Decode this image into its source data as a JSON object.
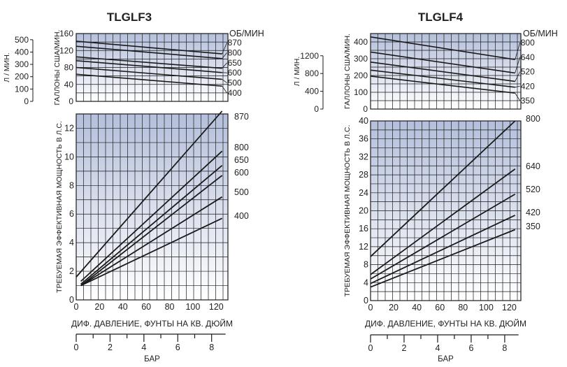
{
  "colors": {
    "title": "#1f5aa8",
    "plot_top": "#b4bfdb",
    "plot_bottom": "#ffffff",
    "grid": "#1a1a1a",
    "line": "#1a1a1a"
  },
  "common": {
    "rpm_label": "ОБ/МИН",
    "flow_left_label": "Л / МИН.",
    "flow_right_label": "ГАЛЛОНЫ США/МИН.",
    "power_label": "ТРЕБУЕМАЯ ЭФФЕКТИВНАЯ МОЩНОСТЬ В Л.С.",
    "psi_label": "ДИФ. ДАВЛЕНИЕ, ФУНТЫ НА КВ. ДЮЙМ",
    "bar_label": "БАР"
  },
  "chart_data": [
    {
      "id": "TLGLF3",
      "title": "TLGLF3",
      "flow_chart": {
        "type": "line",
        "x": [
          0,
          125
        ],
        "ylim": [
          0,
          160
        ],
        "y_ticks": [
          0,
          40,
          80,
          120,
          160
        ],
        "liters_ticks": [
          0,
          100,
          200,
          300,
          400,
          500
        ],
        "series": [
          {
            "name": "870",
            "values": [
              142,
              112
            ]
          },
          {
            "name": "800",
            "values": [
              130,
              101
            ]
          },
          {
            "name": "650",
            "values": [
              105,
              78
            ]
          },
          {
            "name": "600",
            "values": [
              96,
              68
            ]
          },
          {
            "name": "500",
            "values": [
              80,
              52
            ]
          },
          {
            "name": "400",
            "values": [
              64,
              36
            ]
          }
        ]
      },
      "power_chart": {
        "type": "line",
        "xlabel": "ДИФ. ДАВЛЕНИЕ, ФУНТЫ НА КВ. ДЮЙМ",
        "ylabel": "ТРЕБУЕМАЯ ЭФФЕКТИВНАЯ МОЩНОСТЬ В Л.С.",
        "xlim": [
          0,
          130
        ],
        "ylim": [
          0,
          13
        ],
        "x_ticks": [
          0,
          20,
          40,
          60,
          80,
          100,
          120
        ],
        "y_ticks": [
          0,
          2,
          4,
          6,
          8,
          10,
          12
        ],
        "bar_ticks": [
          0,
          2,
          4,
          6,
          8
        ],
        "series": [
          {
            "name": "870",
            "x": [
              0,
              125
            ],
            "values": [
              1.6,
              13.2
            ]
          },
          {
            "name": "800",
            "x": [
              4,
              125
            ],
            "values": [
              1.3,
              10.4
            ]
          },
          {
            "name": "650",
            "x": [
              4,
              125
            ],
            "values": [
              1.1,
              9.4
            ]
          },
          {
            "name": "600",
            "x": [
              4,
              125
            ],
            "values": [
              1.0,
              8.7
            ]
          },
          {
            "name": "500",
            "x": [
              4,
              125
            ],
            "values": [
              1.0,
              7.2
            ]
          },
          {
            "name": "400",
            "x": [
              4,
              125
            ],
            "values": [
              1.0,
              5.7
            ]
          }
        ]
      }
    },
    {
      "id": "TLGLF4",
      "title": "TLGLF4",
      "flow_chart": {
        "type": "line",
        "x": [
          0,
          125
        ],
        "ylim": [
          0,
          450
        ],
        "y_ticks": [
          0,
          100,
          200,
          300,
          400
        ],
        "liters_ticks": [
          0,
          400,
          800,
          1200
        ],
        "series": [
          {
            "name": "800",
            "values": [
              430,
              295
            ]
          },
          {
            "name": "640",
            "values": [
              340,
              215
            ]
          },
          {
            "name": "520",
            "values": [
              280,
              165
            ]
          },
          {
            "name": "420",
            "values": [
              232,
              130
            ]
          },
          {
            "name": "350",
            "values": [
              196,
              95
            ]
          }
        ]
      },
      "power_chart": {
        "type": "line",
        "xlabel": "ДИФ. ДАВЛЕНИЕ, ФУНТЫ НА КВ. ДЮЙМ",
        "ylabel": "ТРЕБУЕМАЯ ЭФФЕКТИВНАЯ МОЩНОСТЬ В Л.С.",
        "xlim": [
          0,
          130
        ],
        "ylim": [
          0,
          40
        ],
        "x_ticks": [
          0,
          20,
          40,
          60,
          80,
          100,
          120
        ],
        "y_ticks": [
          0,
          4,
          8,
          12,
          16,
          20,
          24,
          28,
          32,
          36,
          40
        ],
        "bar_ticks": [
          0,
          2,
          4,
          6,
          8
        ],
        "series": [
          {
            "name": "800",
            "x": [
              0,
              125
            ],
            "values": [
              9.8,
              40
            ]
          },
          {
            "name": "640",
            "x": [
              0,
              125
            ],
            "values": [
              5.8,
              29.3
            ]
          },
          {
            "name": "520",
            "x": [
              0,
              125
            ],
            "values": [
              4.8,
              23.7
            ]
          },
          {
            "name": "420",
            "x": [
              0,
              125
            ],
            "values": [
              3.8,
              19
            ]
          },
          {
            "name": "350",
            "x": [
              0,
              125
            ],
            "values": [
              3.0,
              15.8
            ]
          }
        ]
      }
    }
  ]
}
